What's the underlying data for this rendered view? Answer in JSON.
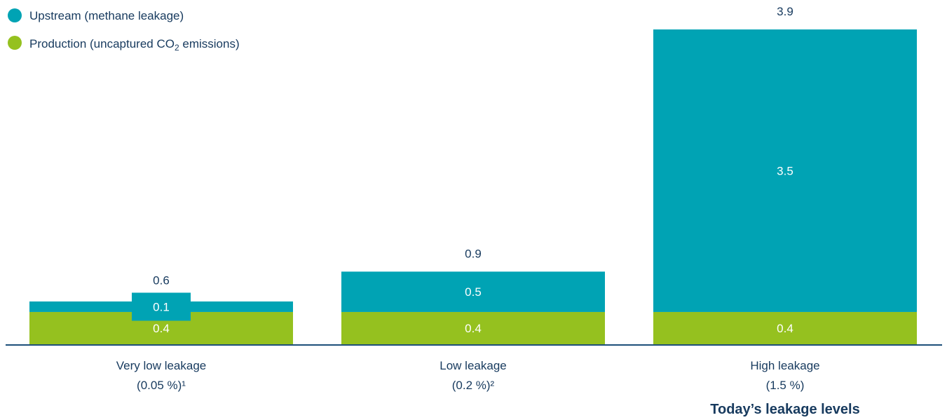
{
  "chart_data": {
    "type": "bar",
    "stacked": true,
    "categories": [
      {
        "line1": "Very low leakage",
        "line2": "(0.05 %)¹"
      },
      {
        "line1": "Low leakage",
        "line2": "(0.2 %)²"
      },
      {
        "line1": "High leakage",
        "line2": "(1.5 %)"
      }
    ],
    "series": [
      {
        "key": "production",
        "name_prefix": "Production (uncaptured CO",
        "name_sub": "2",
        "name_suffix": " emissions)",
        "color": "#95c11f",
        "values": [
          0.4,
          0.4,
          0.4
        ],
        "labels": [
          "0.4",
          "0.4",
          "0.4"
        ]
      },
      {
        "key": "upstream",
        "name": "Upstream (methane leakage)",
        "color": "#00a3b4",
        "values": [
          0.1,
          0.5,
          3.5
        ],
        "labels": [
          "0.1",
          "0.5",
          "3.5"
        ]
      }
    ],
    "totals": [
      "0.6",
      "0.9",
      "3.9"
    ],
    "annotation": "Today’s leakage levels",
    "ylim": [
      0,
      3.9
    ],
    "legend_position": "top-left",
    "grid": false,
    "axis_color": "#1d4f7a"
  }
}
